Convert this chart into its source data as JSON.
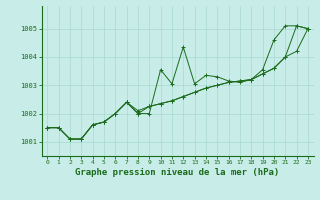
{
  "background_color": "#c8ece8",
  "grid_color": "#a8d8d0",
  "line_color": "#1a6b1a",
  "marker_color": "#1a6b1a",
  "xlabel": "Graphe pression niveau de la mer (hPa)",
  "xlabel_fontsize": 6.5,
  "ylim": [
    1000.5,
    1005.8
  ],
  "xlim": [
    -0.5,
    23.5
  ],
  "yticks": [
    1001,
    1002,
    1003,
    1004,
    1005
  ],
  "xticks": [
    0,
    1,
    2,
    3,
    4,
    5,
    6,
    7,
    8,
    9,
    10,
    11,
    12,
    13,
    14,
    15,
    16,
    17,
    18,
    19,
    20,
    21,
    22,
    23
  ],
  "series": [
    [
      1001.5,
      1001.5,
      1001.1,
      1001.1,
      1001.6,
      1001.7,
      1002.0,
      1002.4,
      1002.0,
      1002.0,
      1003.55,
      1003.05,
      1004.35,
      1003.05,
      1003.35,
      1003.3,
      1003.15,
      1003.1,
      1003.2,
      1003.55,
      1004.6,
      1005.1,
      1005.1,
      1005.0
    ],
    [
      1001.5,
      1001.5,
      1001.1,
      1001.1,
      1001.6,
      1001.7,
      1002.0,
      1002.4,
      1002.1,
      1002.25,
      1002.35,
      1002.45,
      1002.6,
      1002.75,
      1002.9,
      1003.0,
      1003.1,
      1003.15,
      1003.2,
      1003.4,
      1003.6,
      1004.0,
      1004.2,
      1005.0
    ],
    [
      1001.5,
      1001.5,
      1001.1,
      1001.1,
      1001.6,
      1001.7,
      1002.0,
      1002.4,
      1002.0,
      1002.25,
      1002.35,
      1002.45,
      1002.6,
      1002.75,
      1002.9,
      1003.0,
      1003.1,
      1003.15,
      1003.2,
      1003.4,
      1003.6,
      1004.0,
      1005.1,
      1005.0
    ]
  ]
}
